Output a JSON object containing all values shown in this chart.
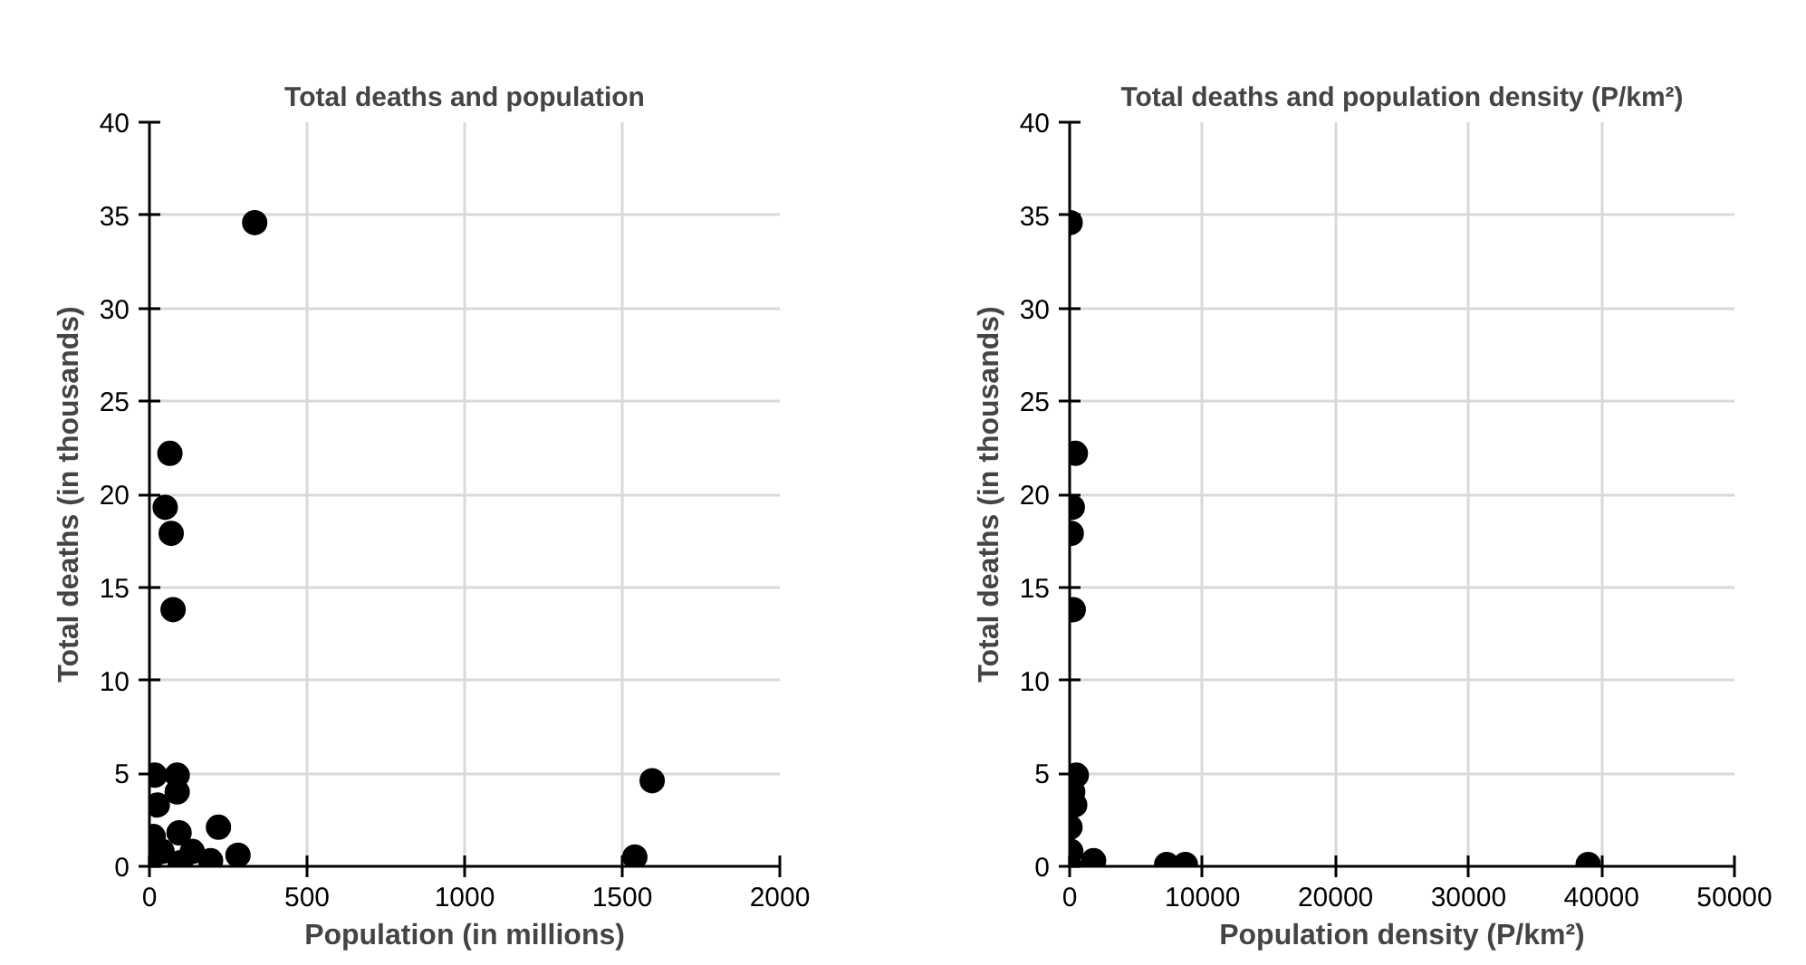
{
  "chart_data": [
    {
      "type": "scatter",
      "title": "Total deaths and population",
      "xlabel": "Population (in millions)",
      "ylabel": "Total deaths (in thousands)",
      "xlim": [
        0,
        2000
      ],
      "ylim": [
        0,
        40
      ],
      "xticks": [
        0,
        500,
        1000,
        1500,
        2000
      ],
      "yticks": [
        0,
        5,
        10,
        15,
        20,
        25,
        30,
        35,
        40
      ],
      "grid": true,
      "marker": "circle",
      "series": [
        {
          "color": "#000000",
          "x": [
            334,
            65,
            50,
            69,
            75,
            17,
            88,
            88,
            25,
            94,
            219,
            281,
            12,
            40,
            136,
            194,
            98,
            1540,
            1595,
            0
          ],
          "values": [
            34.6,
            22.2,
            19.3,
            17.9,
            13.8,
            4.9,
            4.9,
            4.0,
            3.3,
            1.8,
            2.1,
            0.6,
            1.6,
            0.8,
            0.8,
            0.3,
            0.2,
            0.5,
            4.6,
            0
          ]
        }
      ]
    },
    {
      "type": "scatter",
      "title": "Total deaths and population density (P/km²)",
      "xlabel": "Population density (P/km²)",
      "ylabel": "Total deaths (in thousands)",
      "xlim": [
        0,
        50000
      ],
      "ylim": [
        0,
        40
      ],
      "xticks": [
        0,
        10000,
        20000,
        30000,
        40000,
        50000
      ],
      "yticks": [
        0,
        5,
        10,
        15,
        20,
        25,
        30,
        35,
        40
      ],
      "grid": true,
      "marker": "circle",
      "series": [
        {
          "color": "#000000",
          "x": [
            36,
            430,
            200,
            120,
            270,
            500,
            230,
            380,
            25,
            90,
            1800,
            7300,
            8700,
            39000,
            0
          ],
          "values": [
            34.6,
            22.2,
            19.3,
            17.9,
            13.8,
            4.9,
            4.0,
            3.3,
            2.1,
            0.8,
            0.3,
            0.1,
            0.1,
            0.1,
            0
          ]
        }
      ]
    }
  ]
}
